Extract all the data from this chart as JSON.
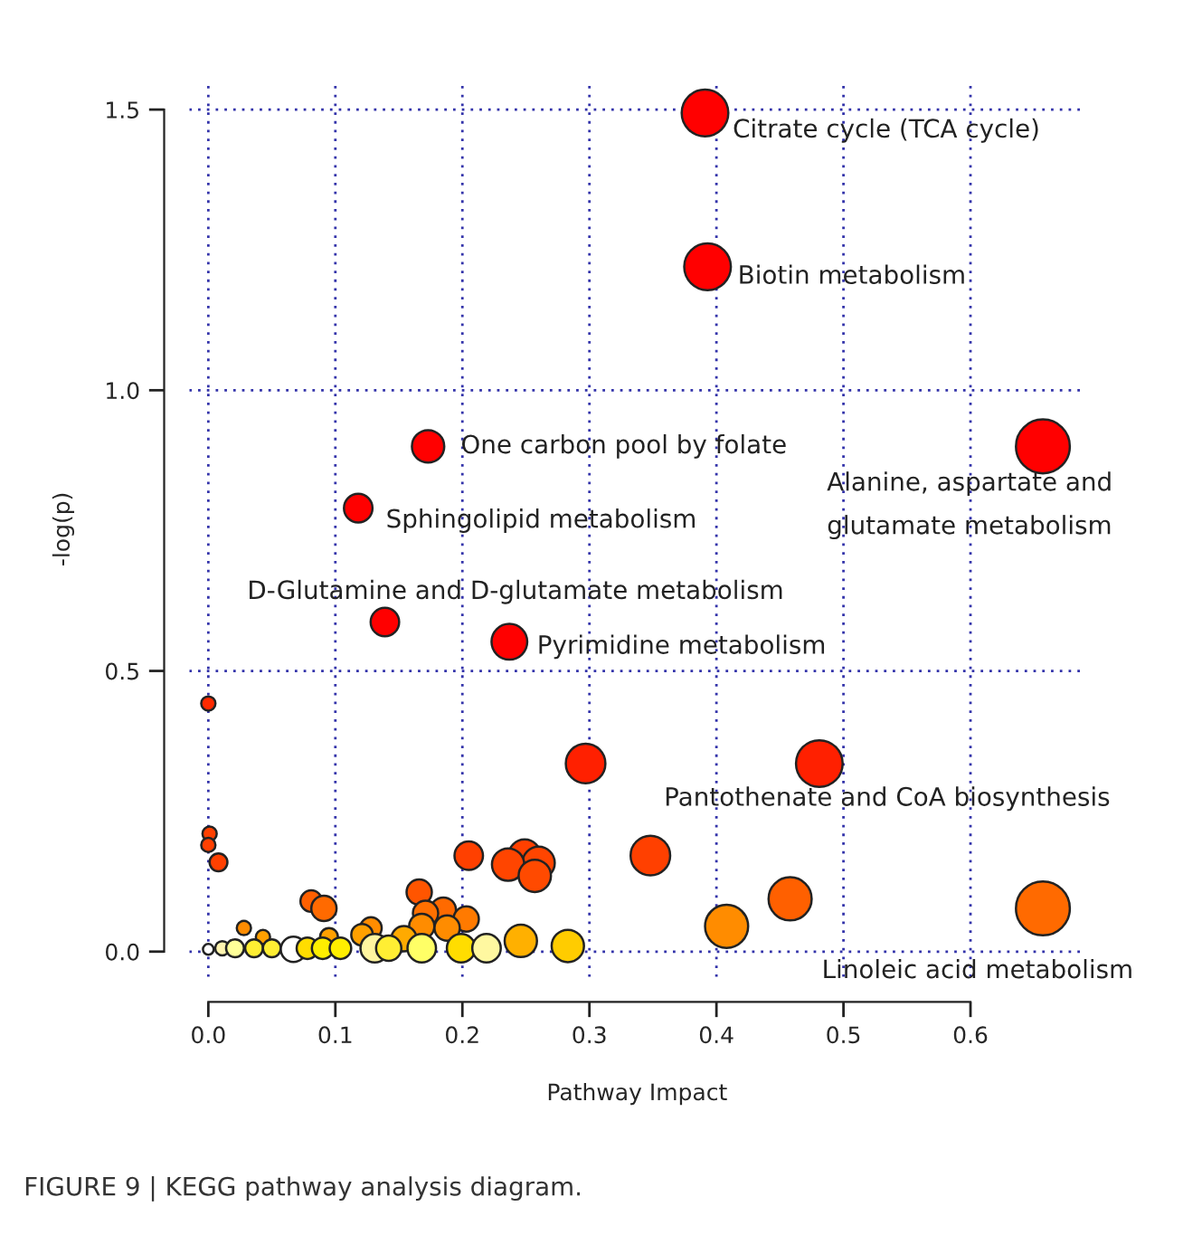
{
  "chart_data": {
    "type": "bubble",
    "xlabel": "Pathway Impact",
    "ylabel": "-log(p)",
    "xlim": [
      -0.015,
      0.69
    ],
    "ylim": [
      -0.045,
      1.55
    ],
    "xticks": [
      {
        "value": 0,
        "label": "0.0"
      },
      0.1,
      0.2,
      0.3,
      0.4,
      0.5,
      0.6
    ],
    "yticks": [
      {
        "value": 0,
        "label": "0.0"
      },
      0.5,
      {
        "value": 1,
        "label": "1.0"
      },
      1.5
    ],
    "grid": true,
    "marker": "circle",
    "x": [
      0.391,
      0.393,
      0.173,
      0.657,
      0.118,
      0.139,
      0.237,
      0.481,
      0.297,
      0.0,
      0.001,
      0.0,
      0.008,
      0.348,
      0.205,
      0.249,
      0.26,
      0.236,
      0.257,
      0.166,
      0.458,
      0.081,
      0.657,
      0.091,
      0.185,
      0.171,
      0.203,
      0.408,
      0.168,
      0.128,
      0.188,
      0.028,
      0.121,
      0.043,
      0.095,
      0.154,
      0.246,
      0.283,
      0.0,
      0.011,
      0.021,
      0.036,
      0.05,
      0.067,
      0.078,
      0.09,
      0.104,
      0.131,
      0.142,
      0.168,
      0.199,
      0.219
    ],
    "values": [
      1.494,
      1.22,
      0.9,
      0.9,
      0.79,
      0.587,
      0.552,
      0.335,
      0.335,
      0.442,
      0.21,
      0.19,
      0.159,
      0.171,
      0.171,
      0.171,
      0.158,
      0.155,
      0.135,
      0.106,
      0.094,
      0.09,
      0.077,
      0.077,
      0.074,
      0.068,
      0.058,
      0.045,
      0.045,
      0.042,
      0.042,
      0.042,
      0.03,
      0.026,
      0.026,
      0.023,
      0.019,
      0.01,
      0.004,
      0.006,
      0.006,
      0.006,
      0.006,
      0.004,
      0.006,
      0.006,
      0.006,
      0.006,
      0.006,
      0.006,
      0.006,
      0.006
    ],
    "sizes": [
      0.75,
      0.75,
      0.36,
      1.0,
      0.28,
      0.28,
      0.44,
      0.75,
      0.54,
      0.07,
      0.07,
      0.07,
      0.11,
      0.54,
      0.28,
      0.36,
      0.36,
      0.36,
      0.36,
      0.22,
      0.64,
      0.16,
      1.0,
      0.22,
      0.22,
      0.22,
      0.22,
      0.64,
      0.22,
      0.16,
      0.22,
      0.07,
      0.16,
      0.07,
      0.11,
      0.22,
      0.36,
      0.36,
      0.04,
      0.07,
      0.11,
      0.11,
      0.11,
      0.22,
      0.16,
      0.16,
      0.16,
      0.28,
      0.22,
      0.28,
      0.28,
      0.28
    ],
    "colors": [
      "#ff0000",
      "#ff0000",
      "#ff0000",
      "#ff0000",
      "#ff0000",
      "#ff0000",
      "#ff0000",
      "#ff2000",
      "#ff2000",
      "#ff2a00",
      "#ff4000",
      "#ff4000",
      "#ff4000",
      "#ff4000",
      "#ff4000",
      "#ff4000",
      "#ff4500",
      "#ff4500",
      "#ff4a00",
      "#ff5500",
      "#ff6000",
      "#ff6000",
      "#ff6a00",
      "#ff6a00",
      "#ff6a00",
      "#ff7000",
      "#ff7a00",
      "#ff8c00",
      "#ff8c00",
      "#ff8c00",
      "#ff8c00",
      "#ff8c00",
      "#ffa000",
      "#ffa000",
      "#ffa000",
      "#ffaa00",
      "#ffb000",
      "#ffcc00",
      "#ffffff",
      "#fff5b0",
      "#ffff99",
      "#ffee33",
      "#ffee33",
      "#ffffff",
      "#ffdd00",
      "#ffee00",
      "#ffee00",
      "#fff5a0",
      "#ffee33",
      "#ffff66",
      "#ffdd00",
      "#fff8a0"
    ],
    "annotations": [
      {
        "text": "Citrate cycle (TCA cycle)",
        "x": 0.391,
        "y": 1.494
      },
      {
        "text": "Biotin metabolism",
        "x": 0.393,
        "y": 1.22
      },
      {
        "text": "One carbon pool by folate",
        "x": 0.173,
        "y": 0.9
      },
      {
        "text": "Alanine, aspartate and\nglutamate metabolism",
        "x": 0.657,
        "y": 0.9
      },
      {
        "text": "Sphingolipid metabolism",
        "x": 0.118,
        "y": 0.79
      },
      {
        "text": "D-Glutamine and D-glutamate metabolism",
        "x": 0.139,
        "y": 0.587
      },
      {
        "text": "Pyrimidine metabolism",
        "x": 0.237,
        "y": 0.552
      },
      {
        "text": "Pantothenate and CoA biosynthesis",
        "x": 0.481,
        "y": 0.335
      },
      {
        "text": "Linoleic acid metabolism",
        "x": 0.657,
        "y": 0.077
      },
      "FIGURE 9 | KEGG pathway analysis diagram."
    ]
  }
}
